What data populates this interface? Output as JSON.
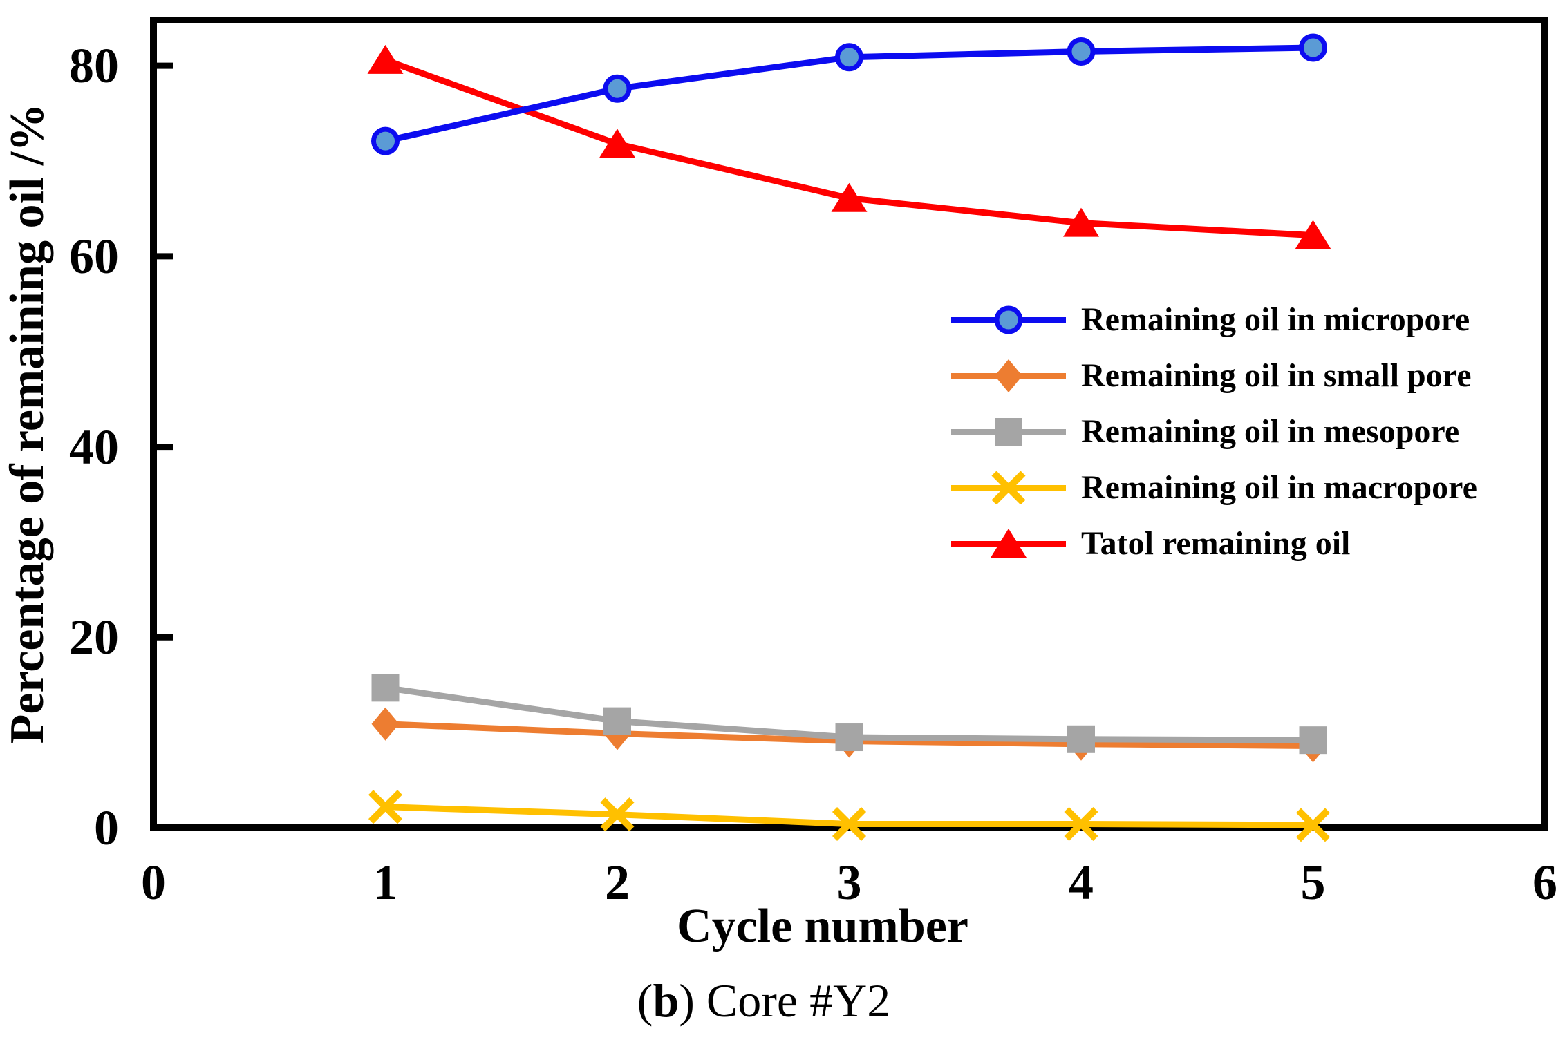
{
  "figure": {
    "caption": {
      "prefix": "(",
      "bold": "b",
      "suffix": ") Core #Y2"
    }
  },
  "chart_data": {
    "type": "line",
    "title": "",
    "xlabel": "Cycle number",
    "ylabel": "Percentage of remaining oil /%",
    "x": [
      1,
      2,
      3,
      4,
      5
    ],
    "xlim": [
      0,
      6
    ],
    "ylim": [
      0,
      84.8
    ],
    "x_ticks": [
      0,
      1,
      2,
      3,
      4,
      5,
      6
    ],
    "y_ticks": [
      0,
      20,
      40,
      60,
      80
    ],
    "grid": false,
    "legend_position": "middle-right",
    "frame_color": "#000000",
    "series": [
      {
        "name": "Remaining oil in micropore",
        "marker": "circle",
        "color": "#0C0CF0",
        "marker_fill": "#5B9BD5",
        "values": [
          72.1,
          77.6,
          80.9,
          81.5,
          81.9
        ]
      },
      {
        "name": "Remaining oil in small pore",
        "marker": "diamond",
        "color": "#ED7D31",
        "marker_fill": "#ED7D31",
        "values": [
          10.9,
          9.9,
          9.1,
          8.8,
          8.6
        ]
      },
      {
        "name": "Remaining oil in mesopore",
        "marker": "square",
        "color": "#A5A5A5",
        "marker_fill": "#A5A5A5",
        "values": [
          14.7,
          11.2,
          9.5,
          9.3,
          9.2
        ]
      },
      {
        "name": "Remaining oil in macropore",
        "marker": "x",
        "color": "#FFC000",
        "marker_fill": "#FFC000",
        "values": [
          2.2,
          1.4,
          0.4,
          0.4,
          0.3
        ]
      },
      {
        "name": "Tatol remaining oil",
        "marker": "triangle",
        "color": "#FF0000",
        "marker_fill": "#FF0000",
        "values": [
          80.6,
          71.8,
          66.1,
          63.5,
          62.2
        ]
      }
    ]
  }
}
